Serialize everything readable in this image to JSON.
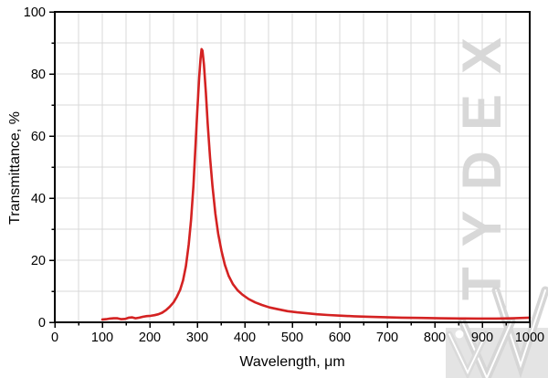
{
  "watermark": {
    "text": "TYDEX",
    "color": "#d8d8d8"
  },
  "logo": {
    "name": "tydex-w-logo",
    "square_color": "#e4e4e4",
    "stroke_color": "#d6d6d6",
    "accent_color": "#ffffff"
  },
  "colors": {
    "background": "#ffffff",
    "grid": "#d9d9d9",
    "spine": "#000000",
    "text": "#000000",
    "curve": "#d42222"
  },
  "chart_data": {
    "type": "line",
    "title": "",
    "xlabel": "Wavelength, μm",
    "ylabel": "Transmittance, %",
    "xlim": [
      0,
      1000
    ],
    "ylim": [
      0,
      100
    ],
    "x_major_ticks": [
      0,
      100,
      200,
      300,
      400,
      500,
      600,
      700,
      800,
      900,
      1000
    ],
    "y_major_ticks": [
      0,
      20,
      40,
      60,
      80,
      100
    ],
    "x_minor_step": 50,
    "y_minor_step": 10,
    "grid": true,
    "grid_x_step": 50,
    "grid_y_step": 10,
    "legend": "none",
    "series": [
      {
        "name": "transmittance",
        "color": "#d42222",
        "peak": {
          "x": 309,
          "y": 88
        },
        "points": [
          [
            100,
            0.9
          ],
          [
            108,
            1.0
          ],
          [
            116,
            1.2
          ],
          [
            124,
            1.3
          ],
          [
            132,
            1.3
          ],
          [
            140,
            1.0
          ],
          [
            148,
            1.1
          ],
          [
            156,
            1.5
          ],
          [
            163,
            1.6
          ],
          [
            170,
            1.3
          ],
          [
            178,
            1.5
          ],
          [
            186,
            1.8
          ],
          [
            194,
            2.0
          ],
          [
            202,
            2.1
          ],
          [
            210,
            2.3
          ],
          [
            218,
            2.6
          ],
          [
            226,
            3.1
          ],
          [
            234,
            3.9
          ],
          [
            242,
            5.0
          ],
          [
            250,
            6.4
          ],
          [
            257,
            8.2
          ],
          [
            264,
            10.5
          ],
          [
            270,
            13.5
          ],
          [
            276,
            18
          ],
          [
            282,
            25
          ],
          [
            287,
            33
          ],
          [
            292,
            44
          ],
          [
            296,
            56
          ],
          [
            300,
            68
          ],
          [
            304,
            79
          ],
          [
            307,
            85
          ],
          [
            309,
            88
          ],
          [
            311,
            87.5
          ],
          [
            314,
            83
          ],
          [
            318,
            74
          ],
          [
            322,
            64
          ],
          [
            327,
            53
          ],
          [
            332,
            44
          ],
          [
            338,
            35
          ],
          [
            344,
            28.5
          ],
          [
            351,
            23
          ],
          [
            358,
            18.5
          ],
          [
            366,
            15
          ],
          [
            375,
            12.3
          ],
          [
            385,
            10.3
          ],
          [
            395,
            8.9
          ],
          [
            408,
            7.5
          ],
          [
            422,
            6.4
          ],
          [
            436,
            5.6
          ],
          [
            452,
            4.8
          ],
          [
            470,
            4.2
          ],
          [
            490,
            3.6
          ],
          [
            510,
            3.2
          ],
          [
            530,
            2.9
          ],
          [
            552,
            2.6
          ],
          [
            575,
            2.35
          ],
          [
            600,
            2.15
          ],
          [
            630,
            1.95
          ],
          [
            660,
            1.8
          ],
          [
            695,
            1.65
          ],
          [
            730,
            1.5
          ],
          [
            770,
            1.4
          ],
          [
            810,
            1.3
          ],
          [
            850,
            1.25
          ],
          [
            890,
            1.2
          ],
          [
            930,
            1.2
          ],
          [
            965,
            1.3
          ],
          [
            1000,
            1.5
          ]
        ]
      }
    ]
  }
}
